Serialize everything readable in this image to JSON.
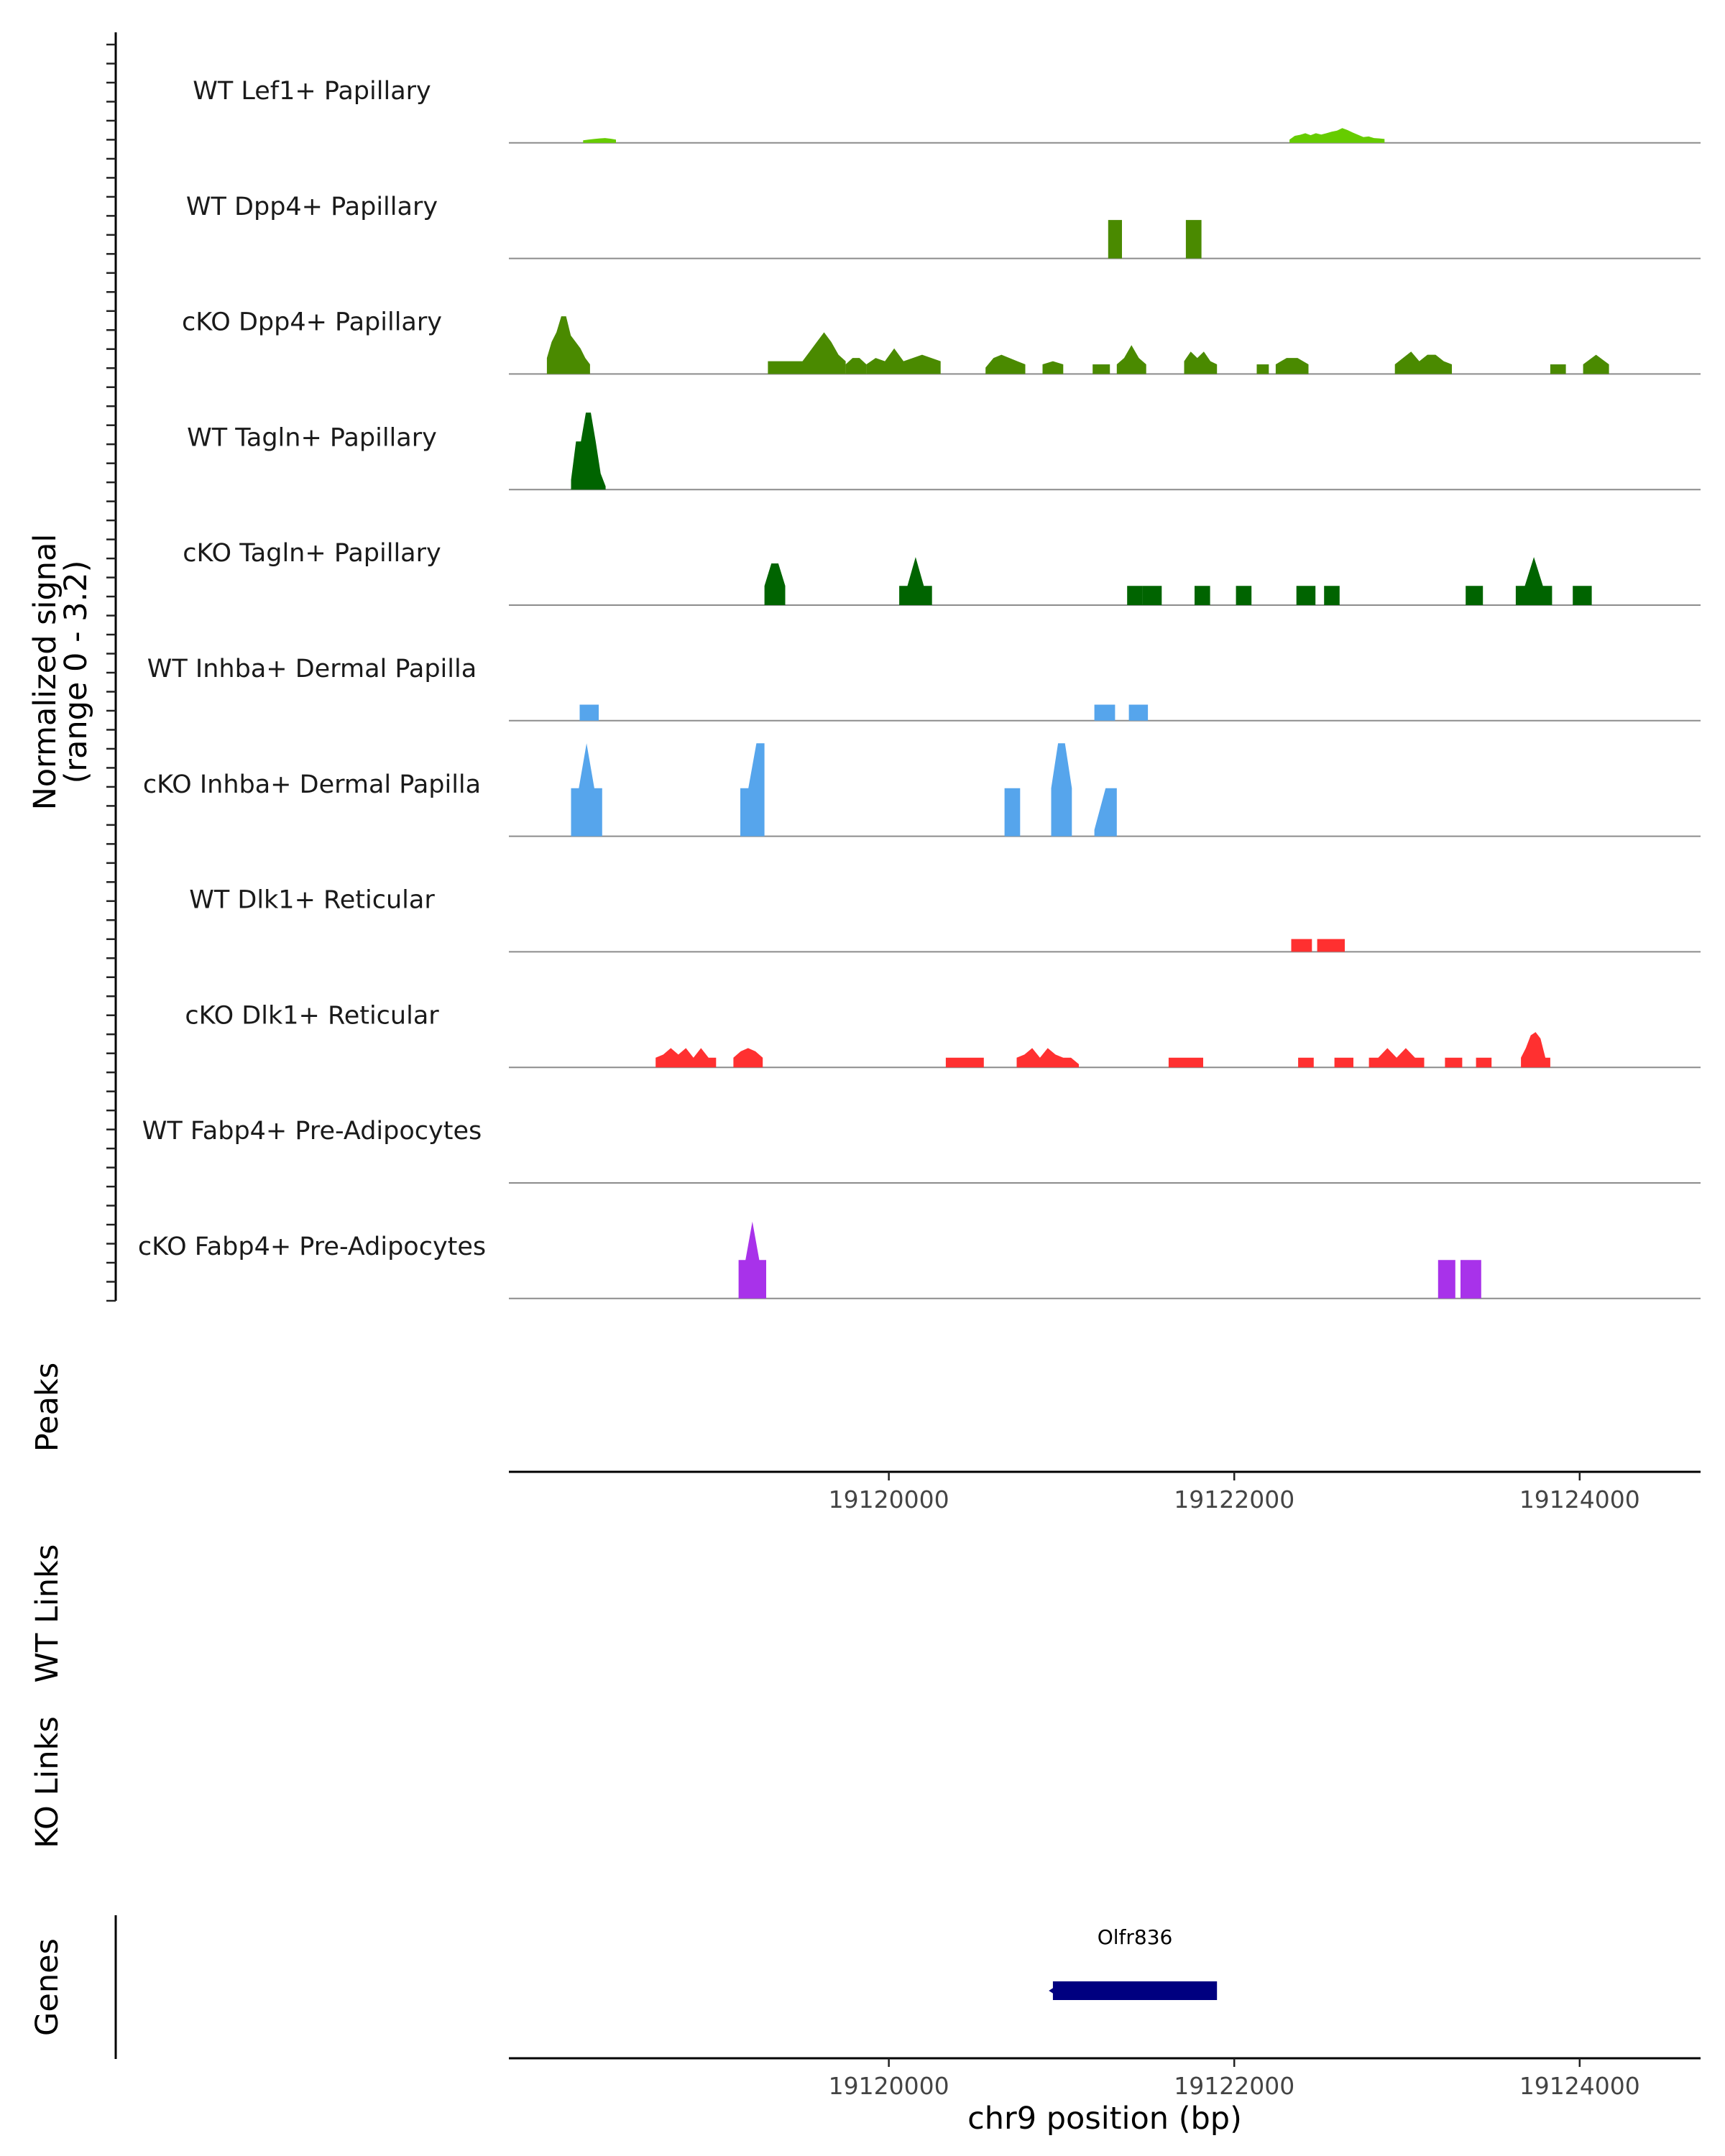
{
  "chart_data": {
    "type": "coverage",
    "chromosome": "chr9",
    "xlim": [
      19117800,
      19124700
    ],
    "ylim": [
      0,
      3.2
    ],
    "signal_ylabel": "Normalized signal",
    "signal_ylabel_range": "(range 0 - 3.2)",
    "xlabel": "chr9 position (bp)",
    "x_ticks": [
      19120000,
      19122000,
      19124000
    ],
    "x_tick_labels": [
      "19120000",
      "19122000",
      "19124000"
    ],
    "panel_labels": {
      "peaks": "Peaks",
      "wt_links": "WT Links",
      "ko_links": "KO Links",
      "genes": "Genes"
    },
    "tracks": [
      {
        "name": "WT Lef1+ Papillary",
        "color": "#66cc00",
        "segments": [
          {
            "start": 19118230,
            "end": 19118420,
            "values": [
              0.08,
              0.1,
              0.12,
              0.14,
              0.15,
              0.13,
              0.1
            ]
          },
          {
            "start": 19122320,
            "end": 19122870,
            "values": [
              0.1,
              0.22,
              0.25,
              0.3,
              0.24,
              0.3,
              0.26,
              0.3,
              0.35,
              0.38,
              0.46,
              0.4,
              0.32,
              0.25,
              0.18,
              0.2,
              0.15,
              0.14,
              0.12
            ]
          }
        ]
      },
      {
        "name": "WT Dpp4+ Papillary",
        "color": "#4a8a00",
        "segments": [
          {
            "start": 19121270,
            "end": 19121350,
            "values": [
              1.2,
              1.2
            ]
          },
          {
            "start": 19121720,
            "end": 19121810,
            "values": [
              1.2,
              1.2
            ]
          }
        ]
      },
      {
        "name": "cKO Dpp4+ Papillary",
        "color": "#4a8a00",
        "segments": [
          {
            "start": 19118020,
            "end": 19118270,
            "values": [
              0.5,
              1.0,
              1.3,
              1.8,
              1.8,
              1.2,
              1.0,
              0.8,
              0.5,
              0.3
            ]
          },
          {
            "start": 19119300,
            "end": 19119500,
            "values": [
              0.4,
              0.4,
              0.4
            ]
          },
          {
            "start": 19119500,
            "end": 19119750,
            "values": [
              0.4,
              0.7,
              1.0,
              1.3,
              1.0,
              0.6,
              0.4
            ]
          },
          {
            "start": 19119750,
            "end": 19119870,
            "values": [
              0.3,
              0.5,
              0.5,
              0.3
            ]
          },
          {
            "start": 19119870,
            "end": 19120300,
            "values": [
              0.3,
              0.5,
              0.4,
              0.8,
              0.4,
              0.5,
              0.6,
              0.5,
              0.4
            ]
          },
          {
            "start": 19120560,
            "end": 19120790,
            "values": [
              0.2,
              0.5,
              0.6,
              0.5,
              0.4,
              0.3
            ]
          },
          {
            "start": 19120890,
            "end": 19121010,
            "values": [
              0.3,
              0.4,
              0.3
            ]
          },
          {
            "start": 19121180,
            "end": 19121280,
            "values": [
              0.3,
              0.3
            ]
          },
          {
            "start": 19121320,
            "end": 19121490,
            "values": [
              0.3,
              0.5,
              0.9,
              0.5,
              0.3
            ]
          },
          {
            "start": 19121710,
            "end": 19121900,
            "values": [
              0.4,
              0.7,
              0.5,
              0.7,
              0.4,
              0.3
            ]
          },
          {
            "start": 19122130,
            "end": 19122200,
            "values": [
              0.3,
              0.3
            ]
          },
          {
            "start": 19122240,
            "end": 19122430,
            "values": [
              0.3,
              0.5,
              0.5,
              0.3
            ]
          },
          {
            "start": 19122930,
            "end": 19123260,
            "values": [
              0.3,
              0.5,
              0.7,
              0.4,
              0.6,
              0.6,
              0.4,
              0.3
            ]
          },
          {
            "start": 19123830,
            "end": 19123920,
            "values": [
              0.3,
              0.3
            ]
          },
          {
            "start": 19124020,
            "end": 19124170,
            "values": [
              0.3,
              0.6,
              0.3
            ]
          }
        ]
      },
      {
        "name": "WT Tagln+ Papillary",
        "color": "#006400",
        "segments": [
          {
            "start": 19118160,
            "end": 19118360,
            "values": [
              0.3,
              1.5,
              1.5,
              2.4,
              2.4,
              1.5,
              0.5,
              0.1
            ]
          }
        ]
      },
      {
        "name": "cKO Tagln+ Papillary",
        "color": "#006400",
        "segments": [
          {
            "start": 19119280,
            "end": 19119400,
            "values": [
              0.6,
              1.3,
              1.3,
              0.6
            ]
          },
          {
            "start": 19120060,
            "end": 19120250,
            "values": [
              0.6,
              0.6,
              1.5,
              0.6,
              0.6
            ]
          },
          {
            "start": 19121380,
            "end": 19121470,
            "values": [
              0.6,
              0.6
            ]
          },
          {
            "start": 19121470,
            "end": 19121580,
            "values": [
              0.6,
              0.6
            ]
          },
          {
            "start": 19121770,
            "end": 19121860,
            "values": [
              0.6,
              0.6
            ]
          },
          {
            "start": 19122010,
            "end": 19122100,
            "values": [
              0.6,
              0.6
            ]
          },
          {
            "start": 19122360,
            "end": 19122470,
            "values": [
              0.6,
              0.6
            ]
          },
          {
            "start": 19122520,
            "end": 19122610,
            "values": [
              0.6,
              0.6
            ]
          },
          {
            "start": 19123340,
            "end": 19123440,
            "values": [
              0.6,
              0.6
            ]
          },
          {
            "start": 19123630,
            "end": 19123840,
            "values": [
              0.6,
              0.6,
              1.5,
              0.6,
              0.6
            ]
          },
          {
            "start": 19123960,
            "end": 19124070,
            "values": [
              0.6,
              0.6
            ]
          }
        ]
      },
      {
        "name": "WT Inhba+ Dermal Papilla",
        "color": "#56a5ec",
        "segments": [
          {
            "start": 19118210,
            "end": 19118320,
            "values": [
              0.5,
              0.5
            ]
          },
          {
            "start": 19121190,
            "end": 19121310,
            "values": [
              0.5,
              0.5
            ]
          },
          {
            "start": 19121390,
            "end": 19121500,
            "values": [
              0.5,
              0.5
            ]
          }
        ]
      },
      {
        "name": "cKO Inhba+ Dermal Papilla",
        "color": "#56a5ec",
        "segments": [
          {
            "start": 19118160,
            "end": 19118340,
            "values": [
              1.5,
              1.5,
              2.9,
              1.5,
              1.5
            ]
          },
          {
            "start": 19119140,
            "end": 19119280,
            "values": [
              1.5,
              1.5,
              2.9,
              2.9
            ]
          },
          {
            "start": 19120670,
            "end": 19120760,
            "values": [
              1.5,
              1.5
            ]
          },
          {
            "start": 19120940,
            "end": 19121060,
            "values": [
              1.5,
              2.9,
              2.9,
              1.5
            ]
          },
          {
            "start": 19121190,
            "end": 19121320,
            "values": [
              0.2,
              1.5,
              1.5
            ]
          }
        ]
      },
      {
        "name": "WT Dlk1+ Reticular",
        "color": "#ff3030",
        "segments": [
          {
            "start": 19122330,
            "end": 19122450,
            "values": [
              0.4,
              0.4
            ]
          },
          {
            "start": 19122480,
            "end": 19122640,
            "values": [
              0.4,
              0.4
            ]
          }
        ]
      },
      {
        "name": "cKO Dlk1+ Reticular",
        "color": "#ff3030",
        "segments": [
          {
            "start": 19118650,
            "end": 19119000,
            "values": [
              0.3,
              0.4,
              0.6,
              0.4,
              0.6,
              0.3,
              0.6,
              0.3,
              0.3
            ]
          },
          {
            "start": 19119100,
            "end": 19119270,
            "values": [
              0.3,
              0.5,
              0.6,
              0.5,
              0.3
            ]
          },
          {
            "start": 19120330,
            "end": 19120430,
            "values": [
              0.3,
              0.3
            ]
          },
          {
            "start": 19120430,
            "end": 19120550,
            "values": [
              0.3,
              0.3
            ]
          },
          {
            "start": 19120740,
            "end": 19121100,
            "values": [
              0.3,
              0.4,
              0.6,
              0.3,
              0.6,
              0.4,
              0.3,
              0.3,
              0.1
            ]
          },
          {
            "start": 19121620,
            "end": 19121820,
            "values": [
              0.3,
              0.3,
              0.3
            ]
          },
          {
            "start": 19122370,
            "end": 19122460,
            "values": [
              0.3,
              0.3
            ]
          },
          {
            "start": 19122580,
            "end": 19122690,
            "values": [
              0.3,
              0.3
            ]
          },
          {
            "start": 19122780,
            "end": 19123100,
            "values": [
              0.3,
              0.3,
              0.6,
              0.3,
              0.6,
              0.3,
              0.3
            ]
          },
          {
            "start": 19123220,
            "end": 19123320,
            "values": [
              0.3,
              0.3
            ]
          },
          {
            "start": 19123400,
            "end": 19123490,
            "values": [
              0.3,
              0.3
            ]
          },
          {
            "start": 19123660,
            "end": 19123830,
            "values": [
              0.3,
              0.6,
              1.0,
              1.1,
              0.9,
              0.3,
              0.3
            ]
          }
        ]
      },
      {
        "name": "WT Fabp4+ Pre-Adipocytes",
        "color": "#a832ea",
        "segments": []
      },
      {
        "name": "cKO Fabp4+ Pre-Adipocytes",
        "color": "#a832ea",
        "segments": [
          {
            "start": 19119130,
            "end": 19119290,
            "values": [
              1.2,
              1.2,
              2.4,
              1.2,
              1.2
            ]
          },
          {
            "start": 19123180,
            "end": 19123280,
            "values": [
              1.2,
              1.2
            ]
          },
          {
            "start": 19123310,
            "end": 19123430,
            "values": [
              1.2,
              1.2
            ]
          }
        ]
      }
    ],
    "genes": [
      {
        "name": "Olfr836",
        "start": 19120950,
        "end": 19121900,
        "strand": "-",
        "color": "#000080"
      }
    ]
  }
}
